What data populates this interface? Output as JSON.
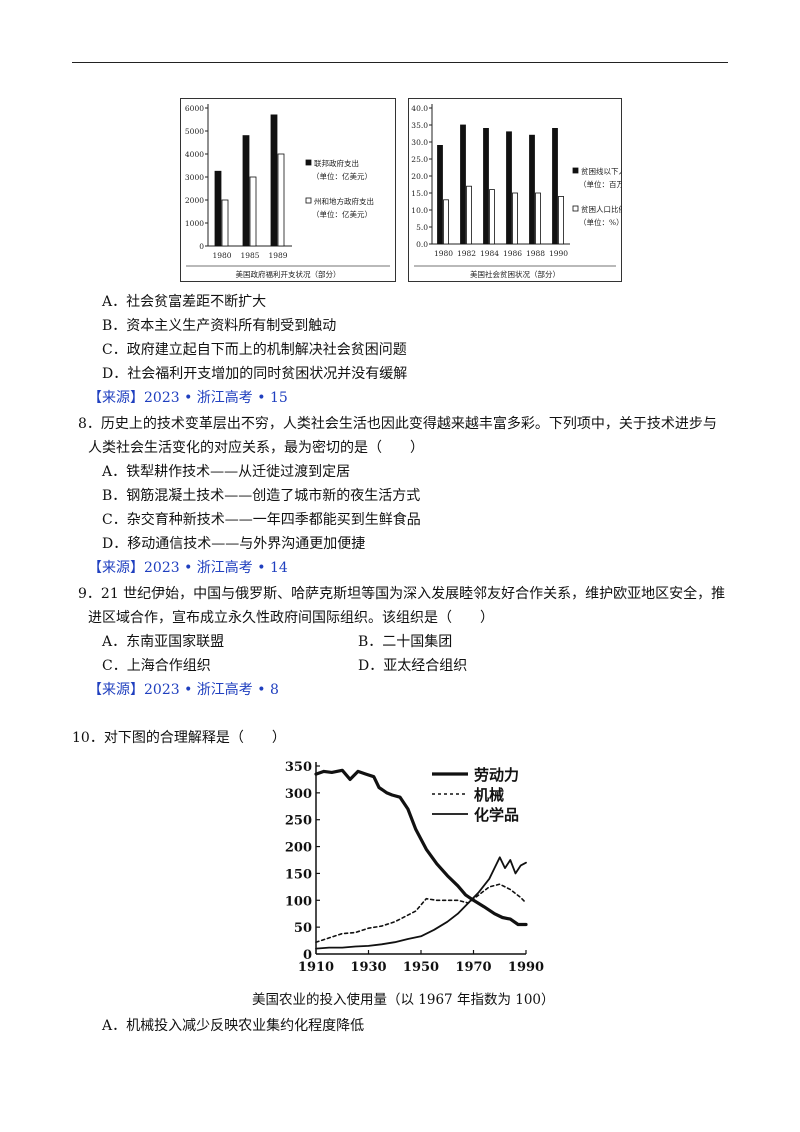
{
  "q7": {
    "chart_left": {
      "type": "bar",
      "categories": [
        "1980",
        "1985",
        "1989"
      ],
      "series": [
        {
          "name": "联邦政府支出",
          "unit": "（单位：亿美元）",
          "values": [
            3250,
            4800,
            5700
          ],
          "color": "#111111"
        },
        {
          "name": "州和地方政府支出",
          "unit": "（单位：亿美元）",
          "values": [
            2000,
            3000,
            4000
          ],
          "color": "#ffffff"
        }
      ],
      "yticks": [
        "0",
        "1000",
        "2000",
        "3000",
        "4000",
        "5000",
        "6000"
      ],
      "ylim": [
        0,
        6000
      ],
      "caption": "美国政府福利开支状况（部分）"
    },
    "chart_right": {
      "type": "bar",
      "categories": [
        "1980",
        "1982",
        "1984",
        "1986",
        "1988",
        "1990"
      ],
      "series": [
        {
          "name": "贫困线以下人数",
          "unit": "（单位：百万）",
          "values": [
            29,
            35,
            34,
            33,
            32,
            34
          ],
          "color": "#111111"
        },
        {
          "name": "贫困人口比例",
          "unit": "（单位：%）",
          "values": [
            13,
            17,
            16,
            15,
            15,
            14
          ],
          "color": "#ffffff"
        }
      ],
      "yticks": [
        "0.0",
        "5.0",
        "10.0",
        "15.0",
        "20.0",
        "25.0",
        "30.0",
        "35.0",
        "40.0"
      ],
      "ylim": [
        0,
        40
      ],
      "caption": "美国社会贫困状况（部分）"
    },
    "options": [
      "A．社会贫富差距不断扩大",
      "B．资本主义生产资料所有制受到触动",
      "C．政府建立起自下而上的机制解决社会贫困问题",
      "D．社会福利开支增加的同时贫困状况并没有缓解"
    ],
    "source": "【来源】2023 • 浙江高考 • 15"
  },
  "q8": {
    "stem_1": "8．历史上的技术变革层出不穷，人类社会生活也因此变得越来越丰富多彩。下列项中，关于技术进步与",
    "stem_2": "人类社会生活变化的对应关系，最为密切的是（　　）",
    "options": [
      "A．铁犁耕作技术——从迁徙过渡到定居",
      "B．钢筋混凝土技术——创造了城市新的夜生活方式",
      "C．杂交育种新技术——一年四季都能买到生鲜食品",
      "D．移动通信技术——与外界沟通更加便捷"
    ],
    "source": "【来源】2023 • 浙江高考 • 14"
  },
  "q9": {
    "stem_1": "9．21 世纪伊始，中国与俄罗斯、哈萨克斯坦等国为深入发展睦邻友好合作关系，维护欧亚地区安全，推",
    "stem_2": "进区域合作，宣布成立永久性政府间国际组织。该组织是（　　）",
    "options": [
      "A．东南亚国家联盟",
      "B．二十国集团",
      "C．上海合作组织",
      "D．亚太经合组织"
    ],
    "source": "【来源】2023 • 浙江高考 • 8"
  },
  "q10": {
    "stem": "10．对下图的合理解释是（　　）",
    "chart": {
      "type": "line",
      "xticks": [
        "1910",
        "1930",
        "1950",
        "1970",
        "1990"
      ],
      "yticks": [
        "0",
        "50",
        "100",
        "150",
        "200",
        "250",
        "300",
        "350"
      ],
      "xlim": [
        1910,
        1990
      ],
      "ylim": [
        0,
        350
      ],
      "series": [
        {
          "name": "劳动力",
          "style": "bold",
          "x": [
            1910,
            1913,
            1916,
            1920,
            1923,
            1926,
            1929,
            1932,
            1934,
            1937,
            1939,
            1942,
            1945,
            1948,
            1952,
            1956,
            1960,
            1964,
            1967,
            1970,
            1974,
            1978,
            1981,
            1984,
            1987,
            1990
          ],
          "y": [
            335,
            340,
            338,
            342,
            325,
            340,
            335,
            330,
            310,
            300,
            296,
            292,
            270,
            232,
            195,
            168,
            146,
            127,
            110,
            100,
            88,
            75,
            68,
            65,
            55,
            55
          ]
        },
        {
          "name": "机械",
          "style": "dashed",
          "x": [
            1910,
            1915,
            1920,
            1925,
            1930,
            1935,
            1940,
            1944,
            1948,
            1952,
            1956,
            1960,
            1964,
            1968,
            1972,
            1976,
            1980,
            1984,
            1988,
            1990
          ],
          "y": [
            22,
            30,
            38,
            40,
            48,
            52,
            60,
            70,
            80,
            103,
            100,
            100,
            100,
            95,
            110,
            125,
            130,
            120,
            105,
            95
          ]
        },
        {
          "name": "化学品",
          "style": "thin",
          "x": [
            1910,
            1915,
            1920,
            1925,
            1930,
            1935,
            1940,
            1945,
            1950,
            1955,
            1960,
            1964,
            1968,
            1972,
            1976,
            1978,
            1980,
            1982,
            1984,
            1986,
            1988,
            1990
          ],
          "y": [
            10,
            12,
            12,
            14,
            15,
            18,
            22,
            28,
            33,
            45,
            60,
            75,
            95,
            115,
            140,
            160,
            180,
            160,
            175,
            150,
            165,
            170
          ]
        }
      ],
      "caption": "美国农业的投入使用量（以 1967 年指数为 100）"
    },
    "option_a": "A．机械投入减少反映农业集约化程度降低"
  }
}
